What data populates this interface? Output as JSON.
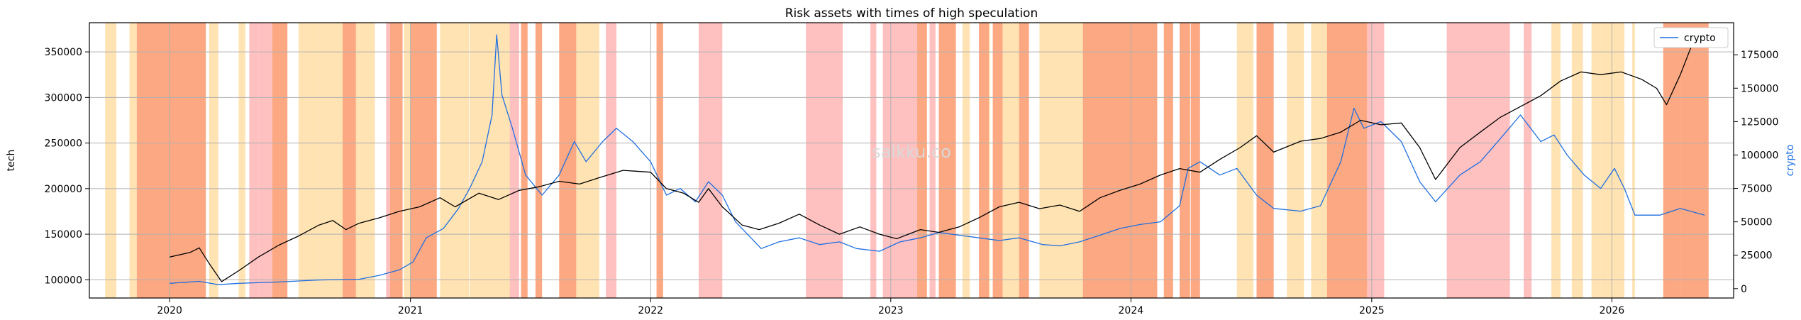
{
  "chart_data": {
    "type": "line",
    "title": "Risk assets with times of high speculation",
    "watermark": "salkku.co",
    "x_range": [
      "2019-09-01",
      "2026-07-05"
    ],
    "x_ticks": [
      "2020-01-01",
      "2021-01-01",
      "2022-01-01",
      "2023-01-01",
      "2024-01-01",
      "2025-01-01",
      "2026-01-01"
    ],
    "x_tick_labels": [
      "2020",
      "2021",
      "2022",
      "2023",
      "2024",
      "2025",
      "2026"
    ],
    "left_axis": {
      "label": "tech",
      "color": "#000000",
      "ylim": [
        80000,
        382000
      ],
      "ticks": [
        100000,
        150000,
        200000,
        250000,
        300000,
        350000
      ],
      "tick_labels": [
        "100000",
        "150000",
        "200000",
        "250000",
        "300000",
        "350000"
      ]
    },
    "right_axis": {
      "label": "crypto",
      "color": "#1f6fe0",
      "ylim": [
        -7000,
        199000
      ],
      "ticks": [
        0,
        25000,
        50000,
        75000,
        100000,
        125000,
        150000,
        175000
      ],
      "tick_labels": [
        "0",
        "25000",
        "50000",
        "75000",
        "100000",
        "125000",
        "150000",
        "175000"
      ]
    },
    "grid": true,
    "legend": {
      "placement": "top-right",
      "entries": [
        {
          "name": "crypto",
          "color": "#1f6fe0"
        }
      ]
    },
    "series": [
      {
        "name": "tech",
        "axis": "left",
        "color": "#000000",
        "points": [
          [
            "2020-01-01",
            125000
          ],
          [
            "2020-02-01",
            130000
          ],
          [
            "2020-02-15",
            135000
          ],
          [
            "2020-03-01",
            118000
          ],
          [
            "2020-03-20",
            98000
          ],
          [
            "2020-04-15",
            110000
          ],
          [
            "2020-05-15",
            125000
          ],
          [
            "2020-06-15",
            138000
          ],
          [
            "2020-07-15",
            148000
          ],
          [
            "2020-08-15",
            160000
          ],
          [
            "2020-09-05",
            165000
          ],
          [
            "2020-09-25",
            155000
          ],
          [
            "2020-10-15",
            162000
          ],
          [
            "2020-11-15",
            168000
          ],
          [
            "2020-12-15",
            175000
          ],
          [
            "2021-01-15",
            180000
          ],
          [
            "2021-02-15",
            190000
          ],
          [
            "2021-03-10",
            180000
          ],
          [
            "2021-04-15",
            195000
          ],
          [
            "2021-05-15",
            188000
          ],
          [
            "2021-06-15",
            198000
          ],
          [
            "2021-07-15",
            202000
          ],
          [
            "2021-08-15",
            208000
          ],
          [
            "2021-09-15",
            205000
          ],
          [
            "2021-10-15",
            212000
          ],
          [
            "2021-11-20",
            220000
          ],
          [
            "2022-01-01",
            218000
          ],
          [
            "2022-01-25",
            200000
          ],
          [
            "2022-02-20",
            195000
          ],
          [
            "2022-03-15",
            185000
          ],
          [
            "2022-03-30",
            200000
          ],
          [
            "2022-04-20",
            180000
          ],
          [
            "2022-05-20",
            160000
          ],
          [
            "2022-06-15",
            155000
          ],
          [
            "2022-07-15",
            162000
          ],
          [
            "2022-08-15",
            172000
          ],
          [
            "2022-09-15",
            160000
          ],
          [
            "2022-10-15",
            150000
          ],
          [
            "2022-11-15",
            158000
          ],
          [
            "2022-12-15",
            150000
          ],
          [
            "2023-01-10",
            145000
          ],
          [
            "2023-02-15",
            155000
          ],
          [
            "2023-03-15",
            152000
          ],
          [
            "2023-04-15",
            158000
          ],
          [
            "2023-05-15",
            168000
          ],
          [
            "2023-06-15",
            180000
          ],
          [
            "2023-07-15",
            185000
          ],
          [
            "2023-08-15",
            178000
          ],
          [
            "2023-09-15",
            182000
          ],
          [
            "2023-10-15",
            175000
          ],
          [
            "2023-11-15",
            190000
          ],
          [
            "2023-12-15",
            198000
          ],
          [
            "2024-01-15",
            205000
          ],
          [
            "2024-02-15",
            215000
          ],
          [
            "2024-03-15",
            222000
          ],
          [
            "2024-04-15",
            218000
          ],
          [
            "2024-05-15",
            232000
          ],
          [
            "2024-06-15",
            245000
          ],
          [
            "2024-07-10",
            258000
          ],
          [
            "2024-08-05",
            240000
          ],
          [
            "2024-09-15",
            252000
          ],
          [
            "2024-10-15",
            255000
          ],
          [
            "2024-11-15",
            262000
          ],
          [
            "2024-12-15",
            275000
          ],
          [
            "2025-01-15",
            270000
          ],
          [
            "2025-02-15",
            272000
          ],
          [
            "2025-03-15",
            245000
          ],
          [
            "2025-04-08",
            210000
          ],
          [
            "2025-05-15",
            245000
          ],
          [
            "2025-06-15",
            262000
          ],
          [
            "2025-07-15",
            278000
          ],
          [
            "2025-08-15",
            290000
          ],
          [
            "2025-09-15",
            302000
          ],
          [
            "2025-10-15",
            318000
          ],
          [
            "2025-11-15",
            328000
          ],
          [
            "2025-12-15",
            325000
          ],
          [
            "2026-01-15",
            328000
          ],
          [
            "2026-02-15",
            320000
          ],
          [
            "2026-03-10",
            310000
          ],
          [
            "2026-03-25",
            292000
          ],
          [
            "2026-04-15",
            325000
          ],
          [
            "2026-05-05",
            362000
          ],
          [
            "2026-05-15",
            370000
          ],
          [
            "2026-05-22",
            365000
          ]
        ]
      },
      {
        "name": "crypto",
        "axis": "right",
        "color": "#1f6fe0",
        "points": [
          [
            "2020-01-01",
            4000
          ],
          [
            "2020-02-15",
            5500
          ],
          [
            "2020-03-15",
            3000
          ],
          [
            "2020-04-15",
            4000
          ],
          [
            "2020-06-15",
            5000
          ],
          [
            "2020-08-15",
            6500
          ],
          [
            "2020-10-15",
            7000
          ],
          [
            "2020-11-15",
            10000
          ],
          [
            "2020-12-15",
            14000
          ],
          [
            "2021-01-05",
            20000
          ],
          [
            "2021-01-25",
            38000
          ],
          [
            "2021-02-20",
            45000
          ],
          [
            "2021-03-15",
            60000
          ],
          [
            "2021-04-01",
            75000
          ],
          [
            "2021-04-20",
            95000
          ],
          [
            "2021-05-05",
            130000
          ],
          [
            "2021-05-12",
            190000
          ],
          [
            "2021-05-20",
            145000
          ],
          [
            "2021-06-05",
            120000
          ],
          [
            "2021-06-25",
            85000
          ],
          [
            "2021-07-20",
            70000
          ],
          [
            "2021-08-15",
            85000
          ],
          [
            "2021-09-07",
            110000
          ],
          [
            "2021-09-25",
            95000
          ],
          [
            "2021-10-20",
            110000
          ],
          [
            "2021-11-10",
            120000
          ],
          [
            "2021-12-05",
            110000
          ],
          [
            "2022-01-01",
            95000
          ],
          [
            "2022-01-25",
            70000
          ],
          [
            "2022-02-15",
            75000
          ],
          [
            "2022-03-10",
            65000
          ],
          [
            "2022-03-30",
            80000
          ],
          [
            "2022-04-20",
            70000
          ],
          [
            "2022-05-10",
            50000
          ],
          [
            "2022-06-18",
            30000
          ],
          [
            "2022-07-15",
            35000
          ],
          [
            "2022-08-15",
            38000
          ],
          [
            "2022-09-15",
            33000
          ],
          [
            "2022-10-15",
            35000
          ],
          [
            "2022-11-10",
            30000
          ],
          [
            "2022-12-15",
            28000
          ],
          [
            "2023-01-15",
            35000
          ],
          [
            "2023-02-15",
            38000
          ],
          [
            "2023-03-15",
            42000
          ],
          [
            "2023-04-15",
            40000
          ],
          [
            "2023-05-15",
            38000
          ],
          [
            "2023-06-15",
            36000
          ],
          [
            "2023-07-15",
            38000
          ],
          [
            "2023-08-20",
            33000
          ],
          [
            "2023-09-15",
            32000
          ],
          [
            "2023-10-15",
            35000
          ],
          [
            "2023-11-15",
            40000
          ],
          [
            "2023-12-15",
            45000
          ],
          [
            "2024-01-15",
            48000
          ],
          [
            "2024-02-15",
            50000
          ],
          [
            "2024-03-15",
            62000
          ],
          [
            "2024-03-28",
            90000
          ],
          [
            "2024-04-15",
            95000
          ],
          [
            "2024-05-15",
            85000
          ],
          [
            "2024-06-10",
            90000
          ],
          [
            "2024-07-10",
            70000
          ],
          [
            "2024-08-05",
            60000
          ],
          [
            "2024-09-15",
            58000
          ],
          [
            "2024-10-15",
            62000
          ],
          [
            "2024-11-15",
            95000
          ],
          [
            "2024-12-05",
            135000
          ],
          [
            "2024-12-20",
            120000
          ],
          [
            "2025-01-15",
            125000
          ],
          [
            "2025-02-15",
            110000
          ],
          [
            "2025-03-15",
            80000
          ],
          [
            "2025-04-08",
            65000
          ],
          [
            "2025-05-15",
            85000
          ],
          [
            "2025-06-15",
            95000
          ],
          [
            "2025-07-15",
            112000
          ],
          [
            "2025-08-15",
            130000
          ],
          [
            "2025-09-15",
            110000
          ],
          [
            "2025-10-05",
            115000
          ],
          [
            "2025-10-25",
            100000
          ],
          [
            "2025-11-20",
            85000
          ],
          [
            "2025-12-15",
            75000
          ],
          [
            "2026-01-05",
            90000
          ],
          [
            "2026-01-20",
            75000
          ],
          [
            "2026-02-05",
            55000
          ],
          [
            "2026-03-15",
            55000
          ],
          [
            "2026-04-15",
            60000
          ],
          [
            "2026-05-22",
            55000
          ]
        ]
      }
    ],
    "shaded_periods": {
      "orange": [
        [
          "2019-09-25",
          "2019-10-12"
        ],
        [
          "2019-11-01",
          "2019-11-12"
        ],
        [
          "2020-03-01",
          "2020-03-15"
        ],
        [
          "2020-04-15",
          "2020-04-25"
        ],
        [
          "2020-07-15",
          "2020-08-15"
        ],
        [
          "2020-08-15",
          "2020-10-15"
        ],
        [
          "2020-10-15",
          "2020-11-08"
        ],
        [
          "2020-12-22",
          "2021-01-01"
        ],
        [
          "2021-02-15",
          "2021-03-31"
        ],
        [
          "2021-04-01",
          "2021-06-15"
        ],
        [
          "2021-09-10",
          "2021-10-15"
        ],
        [
          "2023-04-20",
          "2023-05-01"
        ],
        [
          "2023-05-20",
          "2023-06-01"
        ],
        [
          "2023-06-20",
          "2023-07-20"
        ],
        [
          "2023-08-15",
          "2023-10-20"
        ],
        [
          "2024-06-10",
          "2024-07-05"
        ],
        [
          "2024-08-25",
          "2024-09-20"
        ],
        [
          "2024-10-01",
          "2024-10-25"
        ],
        [
          "2025-10-01",
          "2025-10-15"
        ],
        [
          "2025-11-01",
          "2025-11-18"
        ],
        [
          "2025-12-01",
          "2025-12-15"
        ],
        [
          "2025-12-15",
          "2026-01-20"
        ],
        [
          "2026-02-01",
          "2026-02-05"
        ]
      ],
      "red-orange": [
        [
          "2019-11-12",
          "2020-02-25"
        ],
        [
          "2020-06-05",
          "2020-06-28"
        ],
        [
          "2020-09-20",
          "2020-10-10"
        ],
        [
          "2020-12-01",
          "2020-12-20"
        ],
        [
          "2021-01-01",
          "2021-02-10"
        ],
        [
          "2021-06-18",
          "2021-06-28"
        ],
        [
          "2021-07-10",
          "2021-07-20"
        ],
        [
          "2021-08-15",
          "2021-09-10"
        ],
        [
          "2022-01-10",
          "2022-01-20"
        ],
        [
          "2023-02-10",
          "2023-02-25"
        ],
        [
          "2023-03-15",
          "2023-04-10"
        ],
        [
          "2023-05-15",
          "2023-05-30"
        ],
        [
          "2023-06-05",
          "2023-06-20"
        ],
        [
          "2023-07-15",
          "2023-07-30"
        ],
        [
          "2023-10-20",
          "2024-02-10"
        ],
        [
          "2024-02-20",
          "2024-03-05"
        ],
        [
          "2024-03-15",
          "2024-03-31"
        ],
        [
          "2024-04-01",
          "2024-04-15"
        ],
        [
          "2024-07-10",
          "2024-08-05"
        ],
        [
          "2024-10-25",
          "2024-12-25"
        ],
        [
          "2026-03-20",
          "2026-04-15"
        ],
        [
          "2026-04-15",
          "2026-05-28"
        ]
      ],
      "pink": [
        [
          "2020-05-01",
          "2020-05-15"
        ],
        [
          "2020-05-15",
          "2020-06-05"
        ],
        [
          "2020-11-25",
          "2020-12-01"
        ],
        [
          "2021-06-01",
          "2021-06-15"
        ],
        [
          "2021-10-25",
          "2021-11-10"
        ],
        [
          "2022-03-15",
          "2022-04-20"
        ],
        [
          "2022-08-25",
          "2022-10-20"
        ],
        [
          "2022-12-01",
          "2022-12-10"
        ],
        [
          "2022-12-20",
          "2023-02-10"
        ],
        [
          "2023-03-01",
          "2023-03-10"
        ],
        [
          "2024-12-25",
          "2025-01-20"
        ],
        [
          "2025-04-25",
          "2025-07-30"
        ],
        [
          "2025-08-20",
          "2025-09-01"
        ]
      ]
    }
  }
}
